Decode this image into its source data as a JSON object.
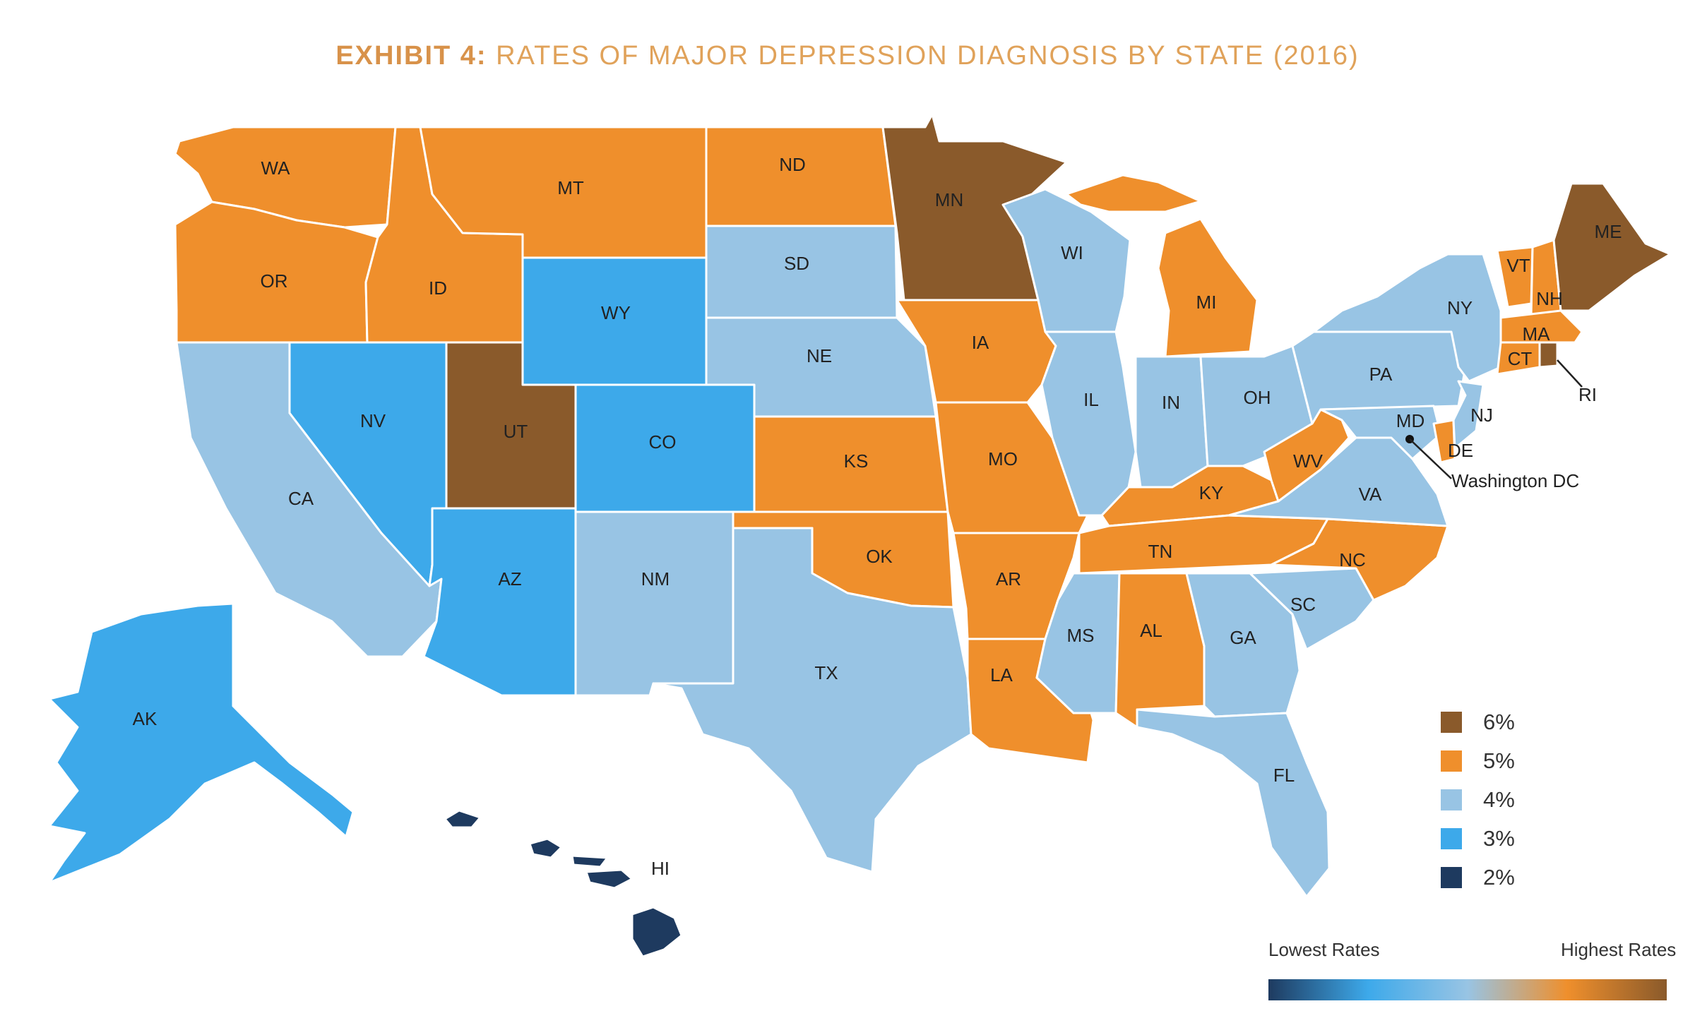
{
  "title": {
    "lead": "EXHIBIT 4:",
    "rest": "RATES OF MAJOR DEPRESSION DIAGNOSIS BY STATE (2016)"
  },
  "colors": {
    "6%": "#8a5a2b",
    "5%": "#ef8f2c",
    "4%": "#98c4e4",
    "3%": "#3da9ea",
    "2%": "#1e3a5f"
  },
  "legend": [
    {
      "label": "6%",
      "color": "#8a5a2b"
    },
    {
      "label": "5%",
      "color": "#ef8f2c"
    },
    {
      "label": "4%",
      "color": "#98c4e4"
    },
    {
      "label": "3%",
      "color": "#3da9ea"
    },
    {
      "label": "2%",
      "color": "#1e3a5f"
    }
  ],
  "scale": {
    "low_label": "Lowest Rates",
    "high_label": "Highest Rates"
  },
  "states": [
    {
      "abbr": "WA",
      "rate": "5%"
    },
    {
      "abbr": "OR",
      "rate": "5%"
    },
    {
      "abbr": "CA",
      "rate": "4%"
    },
    {
      "abbr": "NV",
      "rate": "3%"
    },
    {
      "abbr": "ID",
      "rate": "5%"
    },
    {
      "abbr": "MT",
      "rate": "5%"
    },
    {
      "abbr": "WY",
      "rate": "3%"
    },
    {
      "abbr": "UT",
      "rate": "6%"
    },
    {
      "abbr": "AZ",
      "rate": "3%"
    },
    {
      "abbr": "CO",
      "rate": "3%"
    },
    {
      "abbr": "NM",
      "rate": "4%"
    },
    {
      "abbr": "ND",
      "rate": "5%"
    },
    {
      "abbr": "SD",
      "rate": "4%"
    },
    {
      "abbr": "NE",
      "rate": "4%"
    },
    {
      "abbr": "KS",
      "rate": "5%"
    },
    {
      "abbr": "OK",
      "rate": "5%"
    },
    {
      "abbr": "TX",
      "rate": "4%"
    },
    {
      "abbr": "MN",
      "rate": "6%"
    },
    {
      "abbr": "IA",
      "rate": "5%"
    },
    {
      "abbr": "MO",
      "rate": "5%"
    },
    {
      "abbr": "AR",
      "rate": "5%"
    },
    {
      "abbr": "LA",
      "rate": "5%"
    },
    {
      "abbr": "WI",
      "rate": "4%"
    },
    {
      "abbr": "IL",
      "rate": "4%"
    },
    {
      "abbr": "MI",
      "rate": "5%"
    },
    {
      "abbr": "IN",
      "rate": "4%"
    },
    {
      "abbr": "OH",
      "rate": "4%"
    },
    {
      "abbr": "KY",
      "rate": "5%"
    },
    {
      "abbr": "TN",
      "rate": "5%"
    },
    {
      "abbr": "MS",
      "rate": "4%"
    },
    {
      "abbr": "AL",
      "rate": "5%"
    },
    {
      "abbr": "GA",
      "rate": "4%"
    },
    {
      "abbr": "FL",
      "rate": "4%"
    },
    {
      "abbr": "SC",
      "rate": "4%"
    },
    {
      "abbr": "NC",
      "rate": "5%"
    },
    {
      "abbr": "VA",
      "rate": "4%"
    },
    {
      "abbr": "WV",
      "rate": "5%"
    },
    {
      "abbr": "MD",
      "rate": "4%"
    },
    {
      "abbr": "DE",
      "rate": "5%"
    },
    {
      "abbr": "NJ",
      "rate": "4%"
    },
    {
      "abbr": "PA",
      "rate": "4%"
    },
    {
      "abbr": "NY",
      "rate": "4%"
    },
    {
      "abbr": "VT",
      "rate": "5%"
    },
    {
      "abbr": "NH",
      "rate": "5%"
    },
    {
      "abbr": "ME",
      "rate": "6%"
    },
    {
      "abbr": "MA",
      "rate": "5%"
    },
    {
      "abbr": "CT",
      "rate": "5%"
    },
    {
      "abbr": "RI",
      "rate": "6%"
    },
    {
      "abbr": "AK",
      "rate": "3%"
    },
    {
      "abbr": "HI",
      "rate": "2%"
    }
  ],
  "callouts": {
    "dc": "Washington DC",
    "ri": "RI"
  }
}
